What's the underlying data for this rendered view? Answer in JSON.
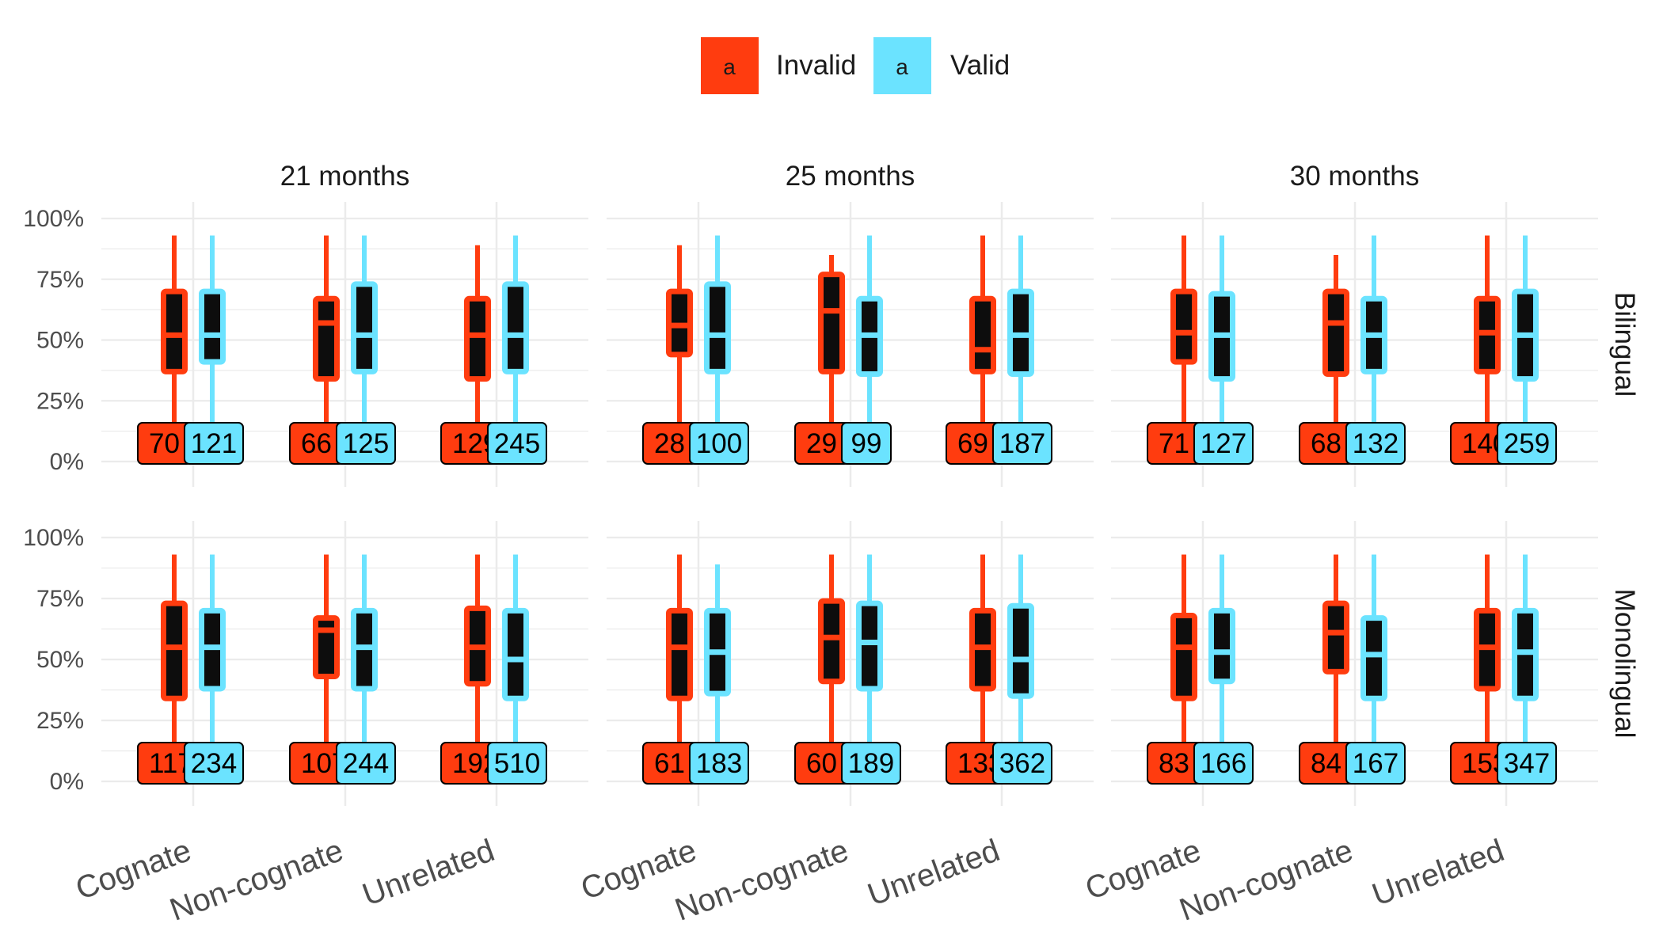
{
  "chart_data": {
    "type": "boxplot",
    "legend": {
      "position": "top",
      "key_glyph": "a",
      "entries": [
        {
          "name": "Invalid",
          "color": "#FF3C0F"
        },
        {
          "name": "Valid",
          "color": "#6BE3FF"
        }
      ]
    },
    "facet_columns": [
      "21 months",
      "25 months",
      "30 months"
    ],
    "facet_rows": [
      "Bilingual",
      "Monolingual"
    ],
    "categories": [
      "Cognate",
      "Non-cognate",
      "Unrelated"
    ],
    "y_ticks": [
      "0%",
      "25%",
      "50%",
      "75%",
      "100%"
    ],
    "ylim": [
      0,
      1
    ],
    "grid": true,
    "box_fill": "#0d0d0d",
    "series": [
      {
        "name": "Invalid",
        "color": "#FF3C0F"
      },
      {
        "name": "Valid",
        "color": "#6BE3FF"
      }
    ],
    "panels": [
      {
        "row": "Bilingual",
        "col": "21 months",
        "groups": [
          {
            "category": "Cognate",
            "invalid": {
              "min": 0.0,
              "q1": 0.37,
              "median": 0.52,
              "q3": 0.7,
              "max": 0.93,
              "n": "70"
            },
            "valid": {
              "min": 0.0,
              "q1": 0.41,
              "median": 0.52,
              "q3": 0.7,
              "max": 0.93,
              "n": "121"
            }
          },
          {
            "category": "Non-cognate",
            "invalid": {
              "min": 0.0,
              "q1": 0.34,
              "median": 0.57,
              "q3": 0.67,
              "max": 0.93,
              "n": "66"
            },
            "valid": {
              "min": 0.0,
              "q1": 0.37,
              "median": 0.52,
              "q3": 0.73,
              "max": 0.93,
              "n": "125"
            }
          },
          {
            "category": "Unrelated",
            "invalid": {
              "min": 0.0,
              "q1": 0.34,
              "median": 0.52,
              "q3": 0.67,
              "max": 0.89,
              "n": "129"
            },
            "valid": {
              "min": 0.0,
              "q1": 0.37,
              "median": 0.52,
              "q3": 0.73,
              "max": 0.93,
              "n": "245"
            }
          }
        ]
      },
      {
        "row": "Bilingual",
        "col": "25 months",
        "groups": [
          {
            "category": "Cognate",
            "invalid": {
              "min": 0.0,
              "q1": 0.44,
              "median": 0.56,
              "q3": 0.7,
              "max": 0.89,
              "n": "28"
            },
            "valid": {
              "min": 0.0,
              "q1": 0.37,
              "median": 0.52,
              "q3": 0.73,
              "max": 0.93,
              "n": "100"
            }
          },
          {
            "category": "Non-cognate",
            "invalid": {
              "min": 0.0,
              "q1": 0.37,
              "median": 0.62,
              "q3": 0.77,
              "max": 0.85,
              "n": "29"
            },
            "valid": {
              "min": 0.0,
              "q1": 0.36,
              "median": 0.52,
              "q3": 0.67,
              "max": 0.93,
              "n": "99"
            }
          },
          {
            "category": "Unrelated",
            "invalid": {
              "min": 0.0,
              "q1": 0.37,
              "median": 0.46,
              "q3": 0.67,
              "max": 0.93,
              "n": "69"
            },
            "valid": {
              "min": 0.0,
              "q1": 0.36,
              "median": 0.52,
              "q3": 0.7,
              "max": 0.93,
              "n": "187"
            }
          }
        ]
      },
      {
        "row": "Bilingual",
        "col": "30 months",
        "groups": [
          {
            "category": "Cognate",
            "invalid": {
              "min": 0.0,
              "q1": 0.41,
              "median": 0.53,
              "q3": 0.7,
              "max": 0.93,
              "n": "71"
            },
            "valid": {
              "min": 0.0,
              "q1": 0.34,
              "median": 0.52,
              "q3": 0.69,
              "max": 0.93,
              "n": "127"
            }
          },
          {
            "category": "Non-cognate",
            "invalid": {
              "min": 0.0,
              "q1": 0.36,
              "median": 0.57,
              "q3": 0.7,
              "max": 0.85,
              "n": "68"
            },
            "valid": {
              "min": 0.0,
              "q1": 0.37,
              "median": 0.52,
              "q3": 0.67,
              "max": 0.93,
              "n": "132"
            }
          },
          {
            "category": "Unrelated",
            "invalid": {
              "min": 0.0,
              "q1": 0.37,
              "median": 0.53,
              "q3": 0.67,
              "max": 0.93,
              "n": "140"
            },
            "valid": {
              "min": 0.0,
              "q1": 0.34,
              "median": 0.52,
              "q3": 0.7,
              "max": 0.93,
              "n": "259"
            }
          }
        ]
      },
      {
        "row": "Monolingual",
        "col": "21 months",
        "groups": [
          {
            "category": "Cognate",
            "invalid": {
              "min": 0.0,
              "q1": 0.34,
              "median": 0.55,
              "q3": 0.73,
              "max": 0.93,
              "n": "117"
            },
            "valid": {
              "min": 0.0,
              "q1": 0.38,
              "median": 0.55,
              "q3": 0.7,
              "max": 0.93,
              "n": "234"
            }
          },
          {
            "category": "Non-cognate",
            "invalid": {
              "min": 0.0,
              "q1": 0.43,
              "median": 0.62,
              "q3": 0.67,
              "max": 0.93,
              "n": "107"
            },
            "valid": {
              "min": 0.0,
              "q1": 0.38,
              "median": 0.55,
              "q3": 0.7,
              "max": 0.93,
              "n": "244"
            }
          },
          {
            "category": "Unrelated",
            "invalid": {
              "min": 0.0,
              "q1": 0.4,
              "median": 0.55,
              "q3": 0.71,
              "max": 0.93,
              "n": "192"
            },
            "valid": {
              "min": 0.0,
              "q1": 0.34,
              "median": 0.5,
              "q3": 0.7,
              "max": 0.93,
              "n": "510"
            }
          }
        ]
      },
      {
        "row": "Monolingual",
        "col": "25 months",
        "groups": [
          {
            "category": "Cognate",
            "invalid": {
              "min": 0.0,
              "q1": 0.34,
              "median": 0.55,
              "q3": 0.7,
              "max": 0.93,
              "n": "61"
            },
            "valid": {
              "min": 0.0,
              "q1": 0.36,
              "median": 0.53,
              "q3": 0.7,
              "max": 0.89,
              "n": "183"
            }
          },
          {
            "category": "Non-cognate",
            "invalid": {
              "min": 0.0,
              "q1": 0.41,
              "median": 0.59,
              "q3": 0.74,
              "max": 0.93,
              "n": "60"
            },
            "valid": {
              "min": 0.0,
              "q1": 0.38,
              "median": 0.57,
              "q3": 0.73,
              "max": 0.93,
              "n": "189"
            }
          },
          {
            "category": "Unrelated",
            "invalid": {
              "min": 0.0,
              "q1": 0.38,
              "median": 0.55,
              "q3": 0.7,
              "max": 0.93,
              "n": "133"
            },
            "valid": {
              "min": 0.0,
              "q1": 0.35,
              "median": 0.5,
              "q3": 0.72,
              "max": 0.93,
              "n": "362"
            }
          }
        ]
      },
      {
        "row": "Monolingual",
        "col": "30 months",
        "groups": [
          {
            "category": "Cognate",
            "invalid": {
              "min": 0.0,
              "q1": 0.34,
              "median": 0.55,
              "q3": 0.68,
              "max": 0.93,
              "n": "83"
            },
            "valid": {
              "min": 0.0,
              "q1": 0.41,
              "median": 0.53,
              "q3": 0.7,
              "max": 0.93,
              "n": "166"
            }
          },
          {
            "category": "Non-cognate",
            "invalid": {
              "min": 0.0,
              "q1": 0.45,
              "median": 0.61,
              "q3": 0.73,
              "max": 0.93,
              "n": "84"
            },
            "valid": {
              "min": 0.0,
              "q1": 0.34,
              "median": 0.52,
              "q3": 0.67,
              "max": 0.93,
              "n": "167"
            }
          },
          {
            "category": "Unrelated",
            "invalid": {
              "min": 0.0,
              "q1": 0.38,
              "median": 0.55,
              "q3": 0.7,
              "max": 0.93,
              "n": "153"
            },
            "valid": {
              "min": 0.0,
              "q1": 0.34,
              "median": 0.53,
              "q3": 0.7,
              "max": 0.93,
              "n": "347"
            }
          }
        ]
      }
    ]
  }
}
